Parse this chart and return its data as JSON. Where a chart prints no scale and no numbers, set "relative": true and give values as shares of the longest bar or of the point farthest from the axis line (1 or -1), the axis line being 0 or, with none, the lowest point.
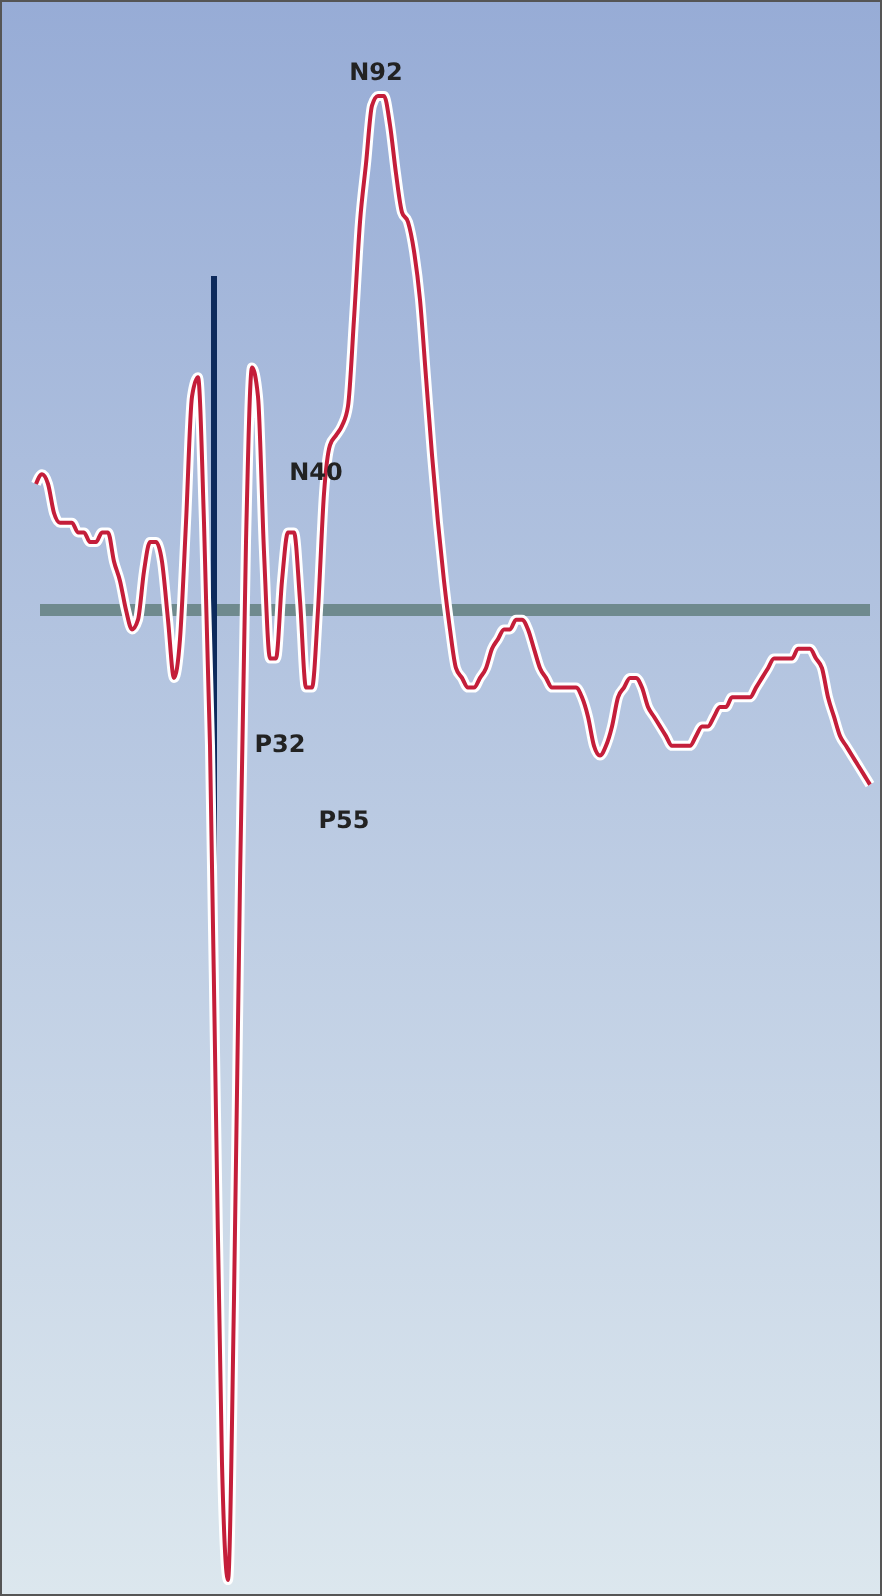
{
  "chart_data": {
    "type": "line",
    "relative": true,
    "categories": [
      null,
      null,
      null,
      null,
      null,
      null,
      null,
      null,
      null,
      null,
      null,
      null,
      null,
      null,
      null,
      null,
      null,
      null,
      null,
      null,
      null,
      null,
      null,
      null,
      null,
      null,
      null,
      null,
      null,
      null,
      null,
      null,
      null,
      null,
      null,
      null,
      null,
      null,
      null,
      null,
      null,
      null,
      null,
      null,
      null,
      null,
      null,
      null,
      null,
      null,
      null,
      null,
      null,
      null,
      null,
      null,
      null,
      null,
      null,
      null,
      null,
      null,
      null,
      null,
      null,
      null,
      null,
      null,
      null,
      null,
      null,
      null,
      null,
      null,
      null,
      null,
      null,
      null,
      null,
      null,
      null,
      null,
      null,
      null,
      null,
      null,
      null,
      null,
      null,
      null,
      null,
      null,
      null,
      null,
      null,
      null,
      null,
      null,
      null,
      null,
      null,
      null,
      null,
      null,
      null,
      null,
      null,
      null,
      null,
      null,
      null,
      null,
      null,
      null,
      null,
      null,
      null,
      null,
      null,
      null,
      null,
      null,
      null,
      null,
      null,
      null,
      null,
      null,
      null,
      null,
      null,
      null,
      null,
      null,
      null,
      null,
      null,
      null,
      null,
      null
    ],
    "series": [
      {
        "color": "#c41e3a",
        "values": [
          0.13,
          0.14,
          0.13,
          0.1,
          0.09,
          0.09,
          0.09,
          0.08,
          0.08,
          0.07,
          0.07,
          0.08,
          0.08,
          0.05,
          0.03,
          0.0,
          -0.02,
          -0.01,
          0.04,
          0.07,
          0.07,
          0.05,
          -0.01,
          -0.07,
          -0.03,
          0.09,
          0.22,
          0.24,
          0.09,
          -0.14,
          -0.52,
          -0.88,
          -1,
          -0.71,
          -0.28,
          0.07,
          0.25,
          0.22,
          0.06,
          -0.05,
          -0.05,
          0.03,
          0.08,
          0.08,
          0.01,
          -0.08,
          -0.08,
          0.0,
          0.12,
          0.17,
          0.18,
          0.19,
          0.21,
          0.3,
          0.4,
          0.46,
          0.52,
          0.53,
          0.53,
          0.5,
          0.45,
          0.41,
          0.4,
          0.37,
          0.32,
          0.24,
          0.16,
          0.09,
          0.03,
          -0.02,
          -0.06,
          -0.07,
          -0.08,
          -0.08,
          -0.07,
          -0.06,
          -0.04,
          -0.03,
          -0.02,
          -0.02,
          -0.01,
          -0.01,
          -0.02,
          -0.04,
          -0.06,
          -0.07,
          -0.08,
          -0.08,
          -0.08,
          -0.08,
          -0.08,
          -0.09,
          -0.11,
          -0.14,
          -0.15,
          -0.14,
          -0.12,
          -0.09,
          -0.08,
          -0.07,
          -0.07,
          -0.08,
          -0.1,
          -0.11,
          -0.12,
          -0.13,
          -0.14,
          -0.14,
          -0.14,
          -0.14,
          -0.13,
          -0.12,
          -0.12,
          -0.11,
          -0.1,
          -0.1,
          -0.09,
          -0.09,
          -0.09,
          -0.09,
          -0.08,
          -0.07,
          -0.06,
          -0.05,
          -0.05,
          -0.05,
          -0.05,
          -0.04,
          -0.04,
          -0.04,
          -0.05,
          -0.06,
          -0.09,
          -0.11,
          -0.13,
          -0.14,
          -0.15,
          -0.16,
          -0.17,
          -0.18
        ]
      }
    ],
    "annotations": [
      "N92",
      "N40",
      "P32",
      "P55"
    ],
    "marker": "none"
  }
}
